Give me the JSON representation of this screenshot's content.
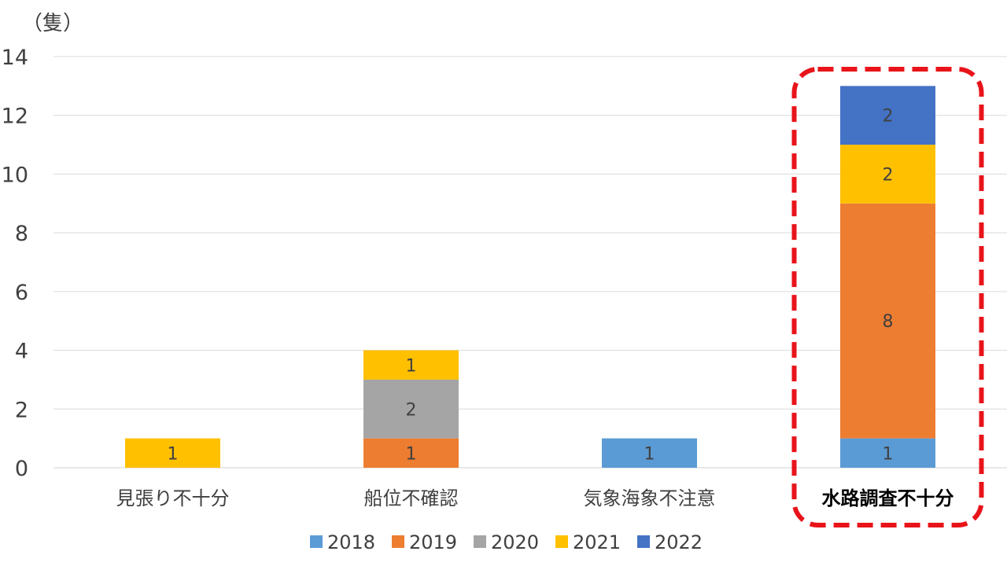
{
  "chart_data": {
    "type": "bar",
    "stacked": true,
    "unit_label": "（隻）",
    "categories": [
      "見張り不十分",
      "船位不確認",
      "気象海象不注意",
      "水路調査不十分"
    ],
    "highlighted_category": "水路調査不十分",
    "series": [
      {
        "name": "2018",
        "color": "#5B9BD5",
        "values": [
          0,
          0,
          1,
          1
        ]
      },
      {
        "name": "2019",
        "color": "#ED7D31",
        "values": [
          0,
          1,
          0,
          8
        ]
      },
      {
        "name": "2020",
        "color": "#A5A5A5",
        "values": [
          0,
          2,
          0,
          0
        ]
      },
      {
        "name": "2021",
        "color": "#FFC000",
        "values": [
          1,
          1,
          0,
          2
        ]
      },
      {
        "name": "2022",
        "color": "#4472C4",
        "values": [
          0,
          0,
          0,
          2
        ]
      }
    ],
    "y_ticks": [
      0,
      2,
      4,
      6,
      8,
      10,
      12,
      14
    ],
    "ylim": [
      0,
      14
    ],
    "grid": true,
    "legend_position": "bottom",
    "highlight_color": "#E8141A"
  }
}
